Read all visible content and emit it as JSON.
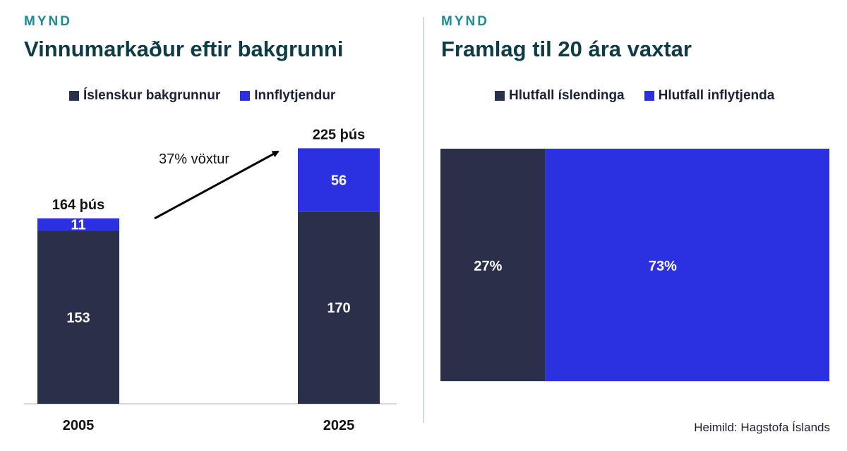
{
  "colors": {
    "native": "#2a3049",
    "immigrant": "#2b31e0",
    "kicker": "#1a8b94",
    "title": "#0d3b46",
    "label_dark": "#111111",
    "label_light": "#ffffff"
  },
  "left": {
    "kicker": "MYND",
    "title": "Vinnumarkaður eftir bakgrunni",
    "legend": [
      "Íslenskur bakgrunnur",
      "Innflytjendur"
    ],
    "annotation": "37% vöxtur"
  },
  "right": {
    "kicker": "MYND",
    "title": "Framlag til 20 ára vaxtar",
    "legend": [
      "Hlutfall íslendinga",
      "Hlutfall inflytjenda"
    ]
  },
  "source": "Heimild: Hagstofa Íslands",
  "chart_data": [
    {
      "type": "bar",
      "stacked": true,
      "categories": [
        "2005",
        "2025"
      ],
      "series": [
        {
          "name": "Íslenskur bakgrunnur",
          "values": [
            153,
            170
          ],
          "labels": [
            "153",
            "170"
          ]
        },
        {
          "name": "Innflytjendur",
          "values": [
            11,
            56
          ],
          "labels": [
            "11",
            "56"
          ]
        }
      ],
      "totals": [
        164,
        225
      ],
      "total_labels": [
        "164 þús",
        "225 þús"
      ],
      "ylim": [
        0,
        225
      ],
      "annotation": "37% vöxtur",
      "legend_position": "top",
      "grid": false
    },
    {
      "type": "bar",
      "stacked": true,
      "orientation": "horizontal",
      "categories": [
        ""
      ],
      "series": [
        {
          "name": "Hlutfall íslendinga",
          "values": [
            27
          ],
          "labels": [
            "27%"
          ]
        },
        {
          "name": "Hlutfall inflytjenda",
          "values": [
            73
          ],
          "labels": [
            "73%"
          ]
        }
      ],
      "xlim": [
        0,
        100
      ],
      "legend_position": "top",
      "grid": false
    }
  ]
}
